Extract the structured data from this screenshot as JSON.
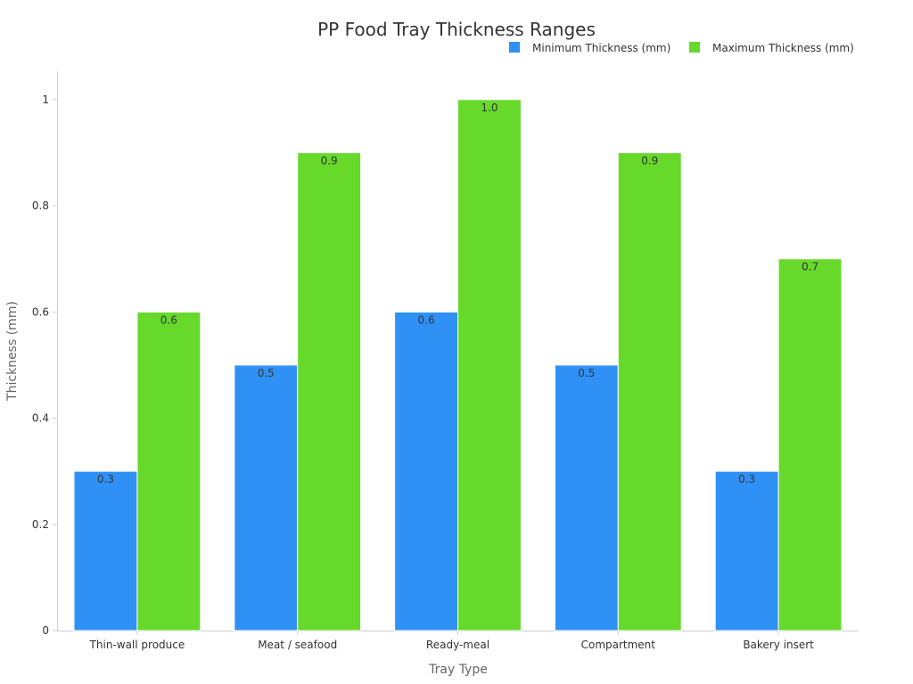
{
  "chart_data": {
    "type": "bar",
    "title": "PP Food Tray Thickness Ranges",
    "xlabel": "Tray Type",
    "ylabel": "Thickness (mm)",
    "categories": [
      "Thin-wall produce",
      "Meat / seafood",
      "Ready-meal",
      "Compartment",
      "Bakery insert"
    ],
    "series": [
      {
        "name": "Minimum Thickness (mm)",
        "color": "#2f91f6",
        "values": [
          0.3,
          0.5,
          0.6,
          0.5,
          0.3
        ],
        "labels": [
          "0.3",
          "0.5",
          "0.6",
          "0.5",
          "0.3"
        ]
      },
      {
        "name": "Maximum Thickness (mm)",
        "color": "#66d92b",
        "values": [
          0.6,
          0.9,
          1.0,
          0.9,
          0.7
        ],
        "labels": [
          "0.6",
          "0.9",
          "1.0",
          "0.9",
          "0.7"
        ]
      }
    ],
    "ylim": [
      0,
      1.05
    ],
    "yticks": [
      0,
      0.2,
      0.4,
      0.6,
      0.8,
      1
    ],
    "ytick_labels": [
      "0",
      "0.2",
      "0.4",
      "0.6",
      "0.8",
      "1"
    ],
    "grid": false,
    "legend_position": "top-right"
  }
}
